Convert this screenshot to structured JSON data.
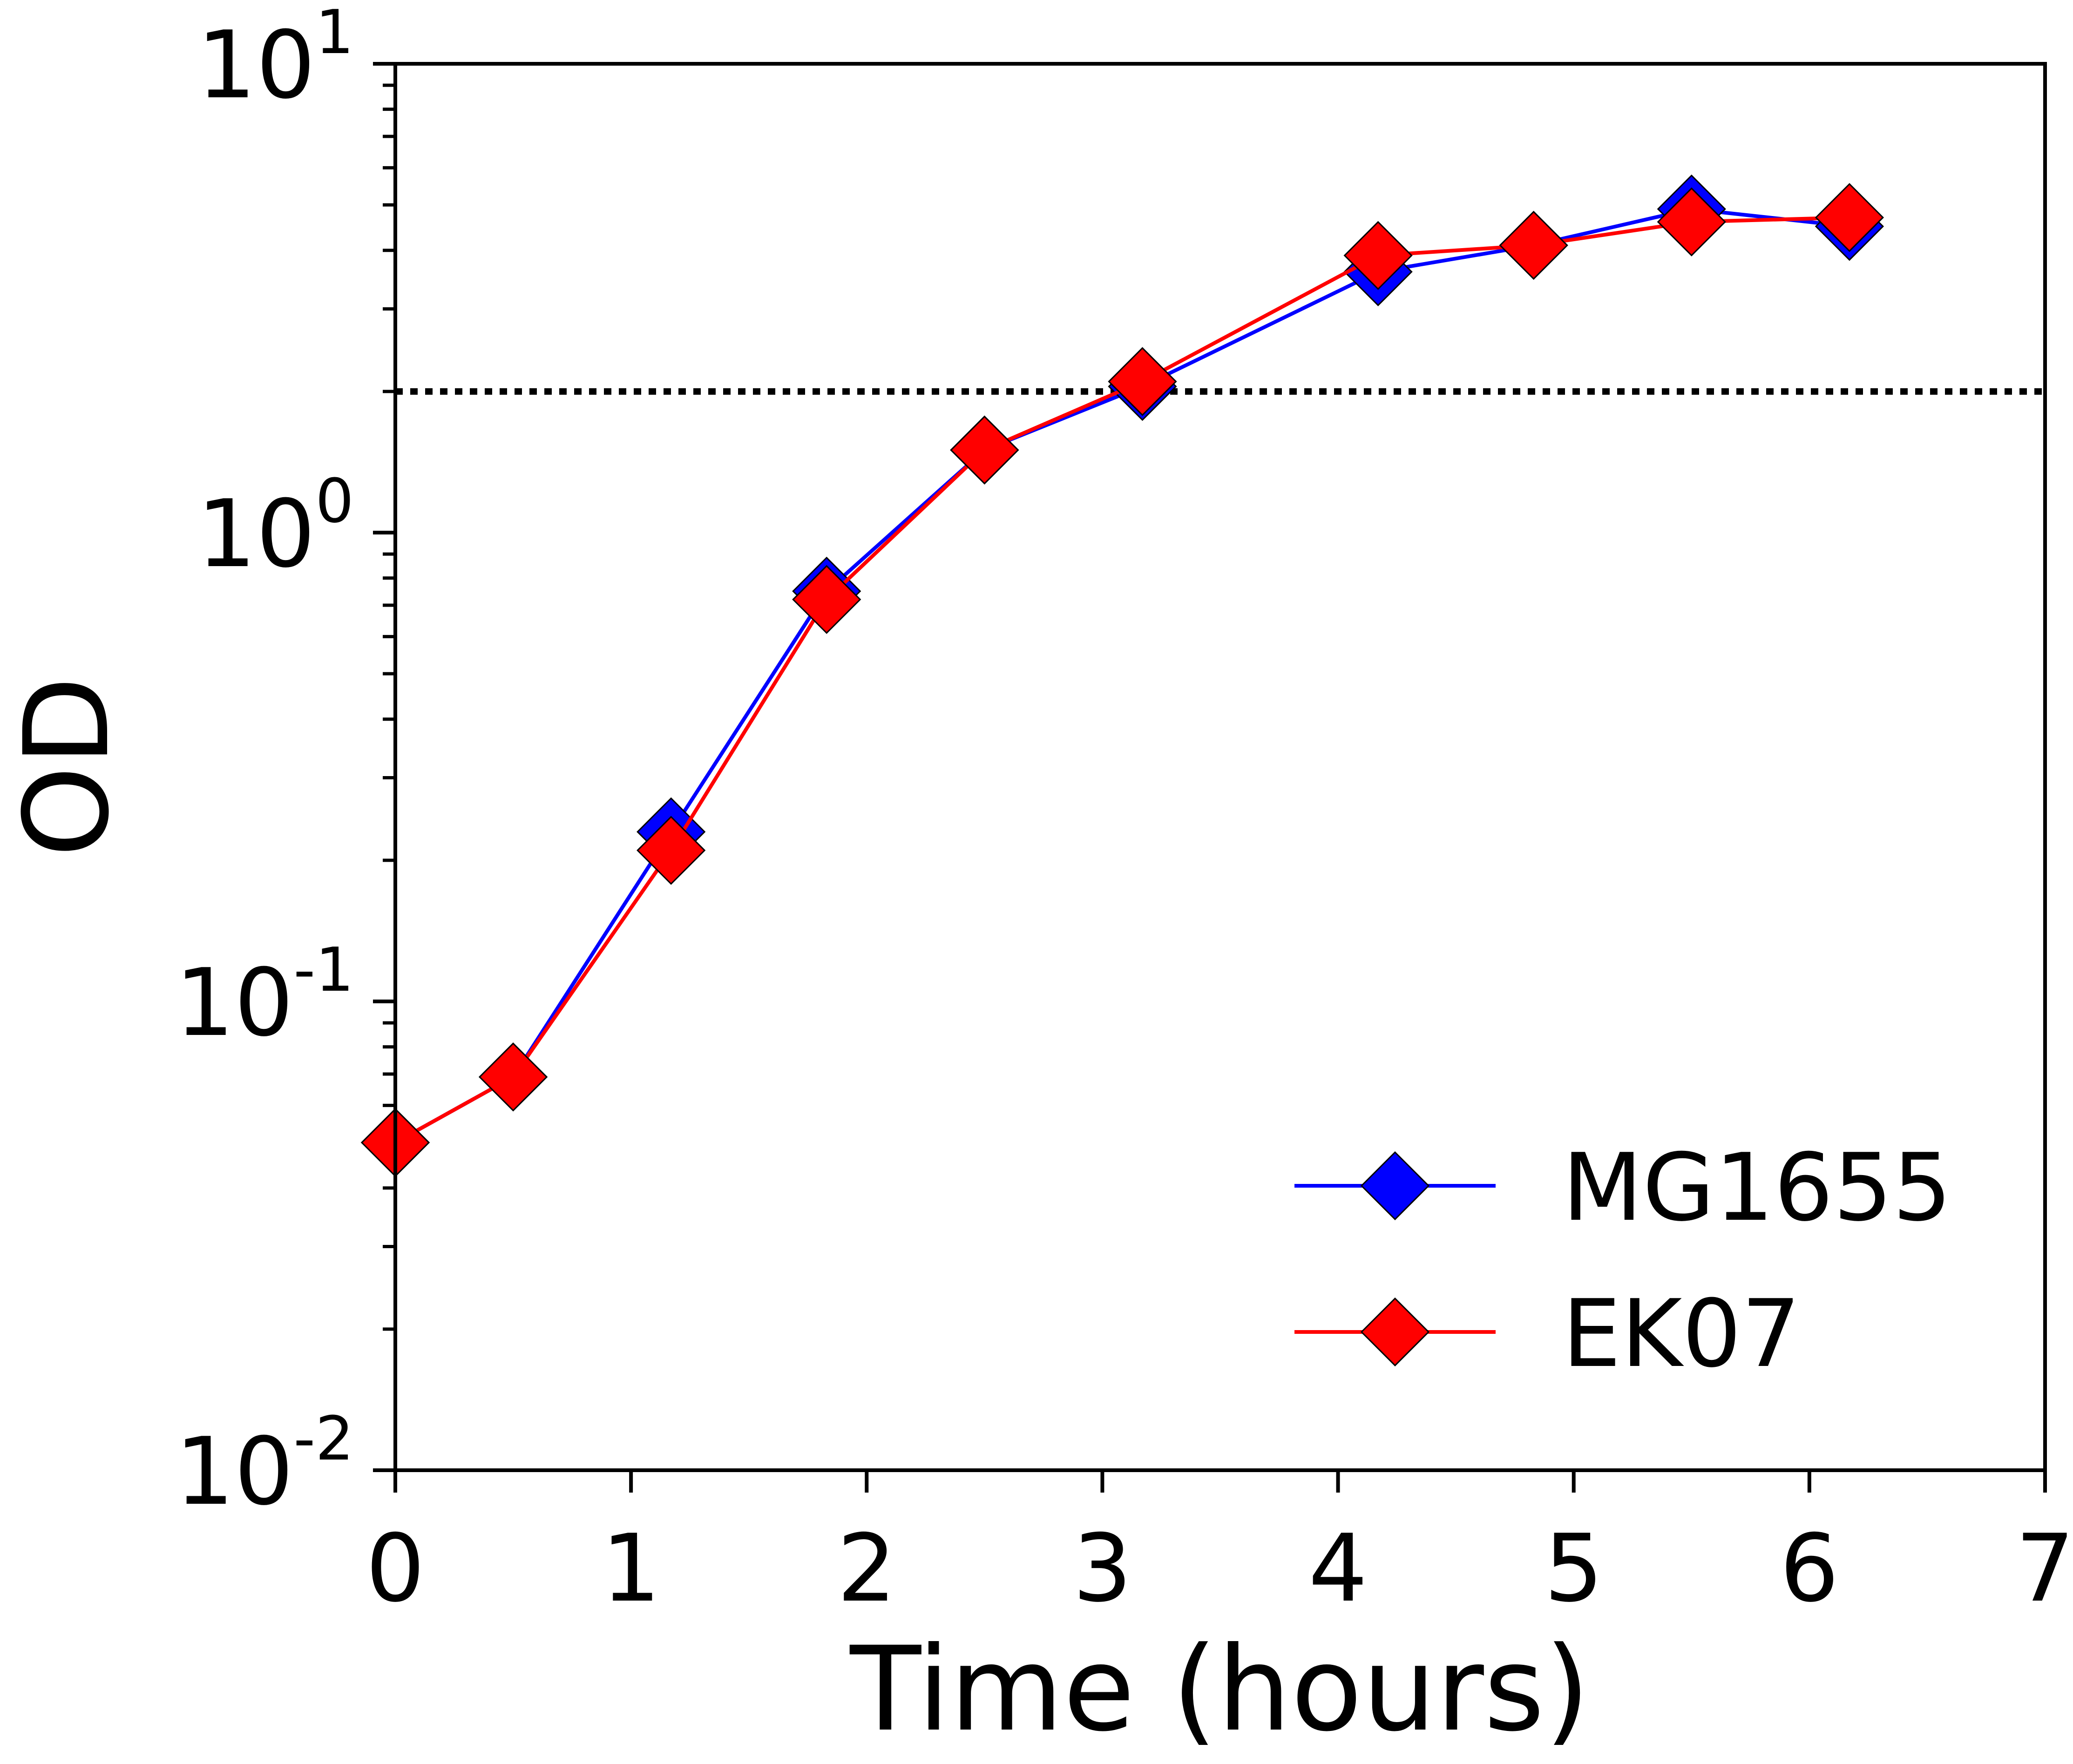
{
  "chart_data": {
    "type": "line",
    "title": "",
    "xlabel": "Time (hours)",
    "ylabel": "OD",
    "xlim": [
      0,
      7
    ],
    "ylim": [
      0.01,
      10
    ],
    "yscale": "log",
    "grid": false,
    "legend_position": "lower-right",
    "x_ticks": [
      "0",
      "1",
      "2",
      "3",
      "4",
      "5",
      "6",
      "7"
    ],
    "y_ticks": [
      {
        "base": "10",
        "exp": "-2",
        "value": 0.01
      },
      {
        "base": "10",
        "exp": "-1",
        "value": 0.1
      },
      {
        "base": "10",
        "exp": "0",
        "value": 1
      },
      {
        "base": "10",
        "exp": "1",
        "value": 10
      }
    ],
    "reference_line": {
      "y": 2.0,
      "style": "dotted",
      "color": "#000000"
    },
    "series": [
      {
        "name": "MG1655",
        "color": "#0000ff",
        "marker": "diamond",
        "x": [
          0.0,
          0.5,
          1.17,
          1.83,
          2.5,
          3.17,
          4.17,
          4.83,
          5.5,
          6.17
        ],
        "y": [
          0.05,
          0.069,
          0.23,
          0.75,
          1.5,
          2.05,
          3.6,
          4.1,
          4.9,
          4.5
        ]
      },
      {
        "name": "EK07",
        "color": "#ff0000",
        "marker": "diamond",
        "x": [
          0.0,
          0.5,
          1.17,
          1.83,
          2.5,
          3.17,
          4.17,
          4.83,
          5.5,
          6.17
        ],
        "y": [
          0.05,
          0.069,
          0.21,
          0.72,
          1.5,
          2.1,
          3.9,
          4.1,
          4.6,
          4.7
        ]
      }
    ]
  }
}
